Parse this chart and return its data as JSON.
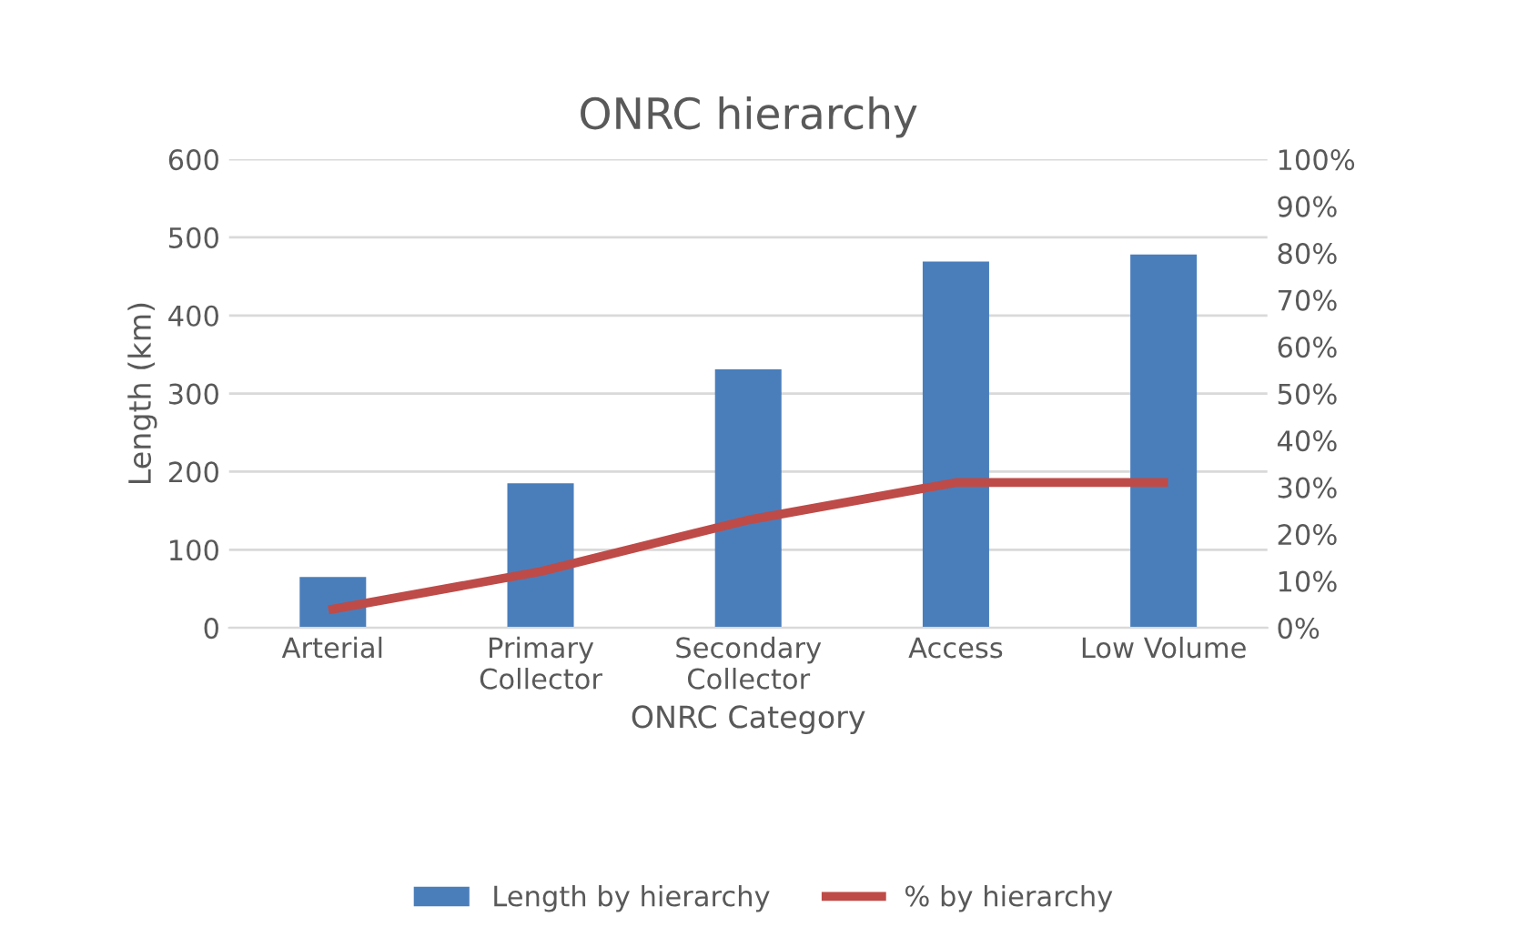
{
  "chart_data": {
    "type": "bar",
    "title": "ONRC hierarchy",
    "xlabel": "ONRC Category",
    "ylabel": "Length (km)",
    "categories": [
      "Arterial",
      "Primary\nCollector",
      "Secondary\nCollector",
      "Access",
      "Low Volume"
    ],
    "series": [
      {
        "name": "Length by hierarchy",
        "color": "#4a7ebb",
        "values": [
          65,
          185,
          331,
          469,
          478
        ]
      },
      {
        "name": "% by hierarchy",
        "type": "line",
        "axis": "y2",
        "color": "#be4b48",
        "values": [
          4,
          12,
          23,
          31,
          31
        ]
      }
    ],
    "ylim": [
      0,
      600
    ],
    "yticks": [
      0,
      100,
      200,
      300,
      400,
      500,
      600
    ],
    "y2lim": [
      0,
      100
    ],
    "y2ticks": [
      {
        "value": 0,
        "label": "0%"
      },
      {
        "value": 10,
        "label": "10%"
      },
      {
        "value": 20,
        "label": "20%"
      },
      {
        "value": 30,
        "label": "30%"
      },
      {
        "value": 40,
        "label": "40%"
      },
      {
        "value": 50,
        "label": "50%"
      },
      {
        "value": 60,
        "label": "60%"
      },
      {
        "value": 70,
        "label": "70%"
      },
      {
        "value": 80,
        "label": "80%"
      },
      {
        "value": 90,
        "label": "90%"
      },
      {
        "value": 100,
        "label": "100%"
      }
    ],
    "grid": "y",
    "legend": "bottom"
  }
}
